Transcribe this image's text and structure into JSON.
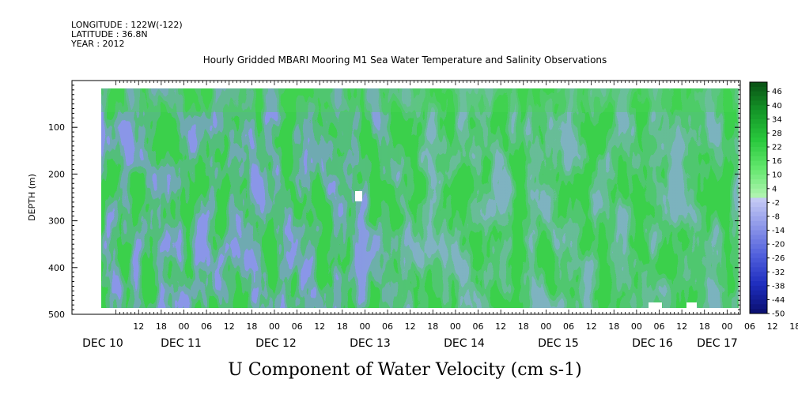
{
  "header": {
    "lines": [
      "LONGITUDE : 122W(-122)",
      "LATITUDE : 36.8N",
      "YEAR : 2012"
    ]
  },
  "chart_data": {
    "type": "heatmap",
    "title": "Hourly Gridded MBARI Mooring M1 Sea Water Temperature and Salinity Observations",
    "xlabel": "U Component of Water Velocity (cm s-1)",
    "ylabel": "DEPTH (m)",
    "ylim": [
      500,
      10
    ],
    "y_inverted": true,
    "y_ticks": [
      100,
      200,
      300,
      400,
      500
    ],
    "x_hour_ticks": [
      "12",
      "18",
      "00",
      "06",
      "12",
      "18",
      "00",
      "06",
      "12",
      "18",
      "00",
      "06",
      "12",
      "18",
      "00",
      "06",
      "12",
      "18",
      "00",
      "06",
      "12",
      "18",
      "00",
      "06",
      "12",
      "18",
      "00",
      "06",
      "12",
      "18",
      "00",
      "06"
    ],
    "x_day_labels": [
      "DEC 10",
      "DEC 11",
      "DEC 12",
      "DEC 13",
      "DEC 14",
      "DEC 15",
      "DEC 16",
      "DEC 17"
    ],
    "colorbar": {
      "range": [
        -50,
        50
      ],
      "labels": [
        "46",
        "40",
        "34",
        "28",
        "22",
        "16",
        "10",
        "4",
        "-2",
        "-8",
        "-14",
        "-20",
        "-26",
        "-32",
        "-38",
        "-44",
        "-50"
      ],
      "negative_color": "#8a96e8",
      "positive_color": "#5ee86e"
    },
    "data_start": "2012-12-10 00:00",
    "data_end": "2012-12-17 06:00",
    "depth_range": [
      20,
      485
    ],
    "grid": false
  }
}
